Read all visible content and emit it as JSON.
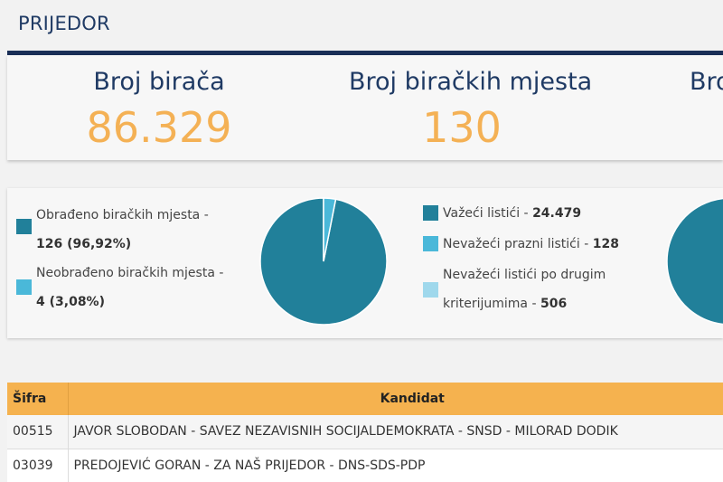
{
  "header": {
    "title": "PRIJEDOR"
  },
  "stats": [
    {
      "label": "Broj birača",
      "value": "86.329"
    },
    {
      "label": "Broj biračkih mjesta",
      "value": "130"
    },
    {
      "label": "Bro",
      "value": ""
    }
  ],
  "polling_chart": {
    "legend": [
      {
        "label": "Obrađeno biračkih mjesta -",
        "value": "126 (96,92%)",
        "color": "#21809a"
      },
      {
        "label": "Neobrađeno biračkih mjesta -",
        "value": "4 (3,08%)",
        "color": "#4ab8d9"
      }
    ],
    "slices": [
      {
        "share": 96.92,
        "color": "#21809a"
      },
      {
        "share": 3.08,
        "color": "#4ab8d9"
      }
    ]
  },
  "ballots_chart": {
    "legend": [
      {
        "label": "Važeći listići - ",
        "value": "24.479",
        "color": "#21809a"
      },
      {
        "label": "Nevažeći prazni listići - ",
        "value": "128",
        "color": "#4ab8d9"
      },
      {
        "label_line1": "Nevažeći listići po drugim",
        "label_line2": "kriterijumima - ",
        "value": "506",
        "color": "#9fd8ec"
      }
    ],
    "slices": [
      {
        "share": 97.48,
        "color": "#21809a"
      },
      {
        "share": 0.51,
        "color": "#4ab8d9"
      },
      {
        "share": 2.01,
        "color": "#9fd8ec"
      }
    ]
  },
  "table": {
    "headers": {
      "code": "Šifra",
      "candidate": "Kandidat"
    },
    "rows": [
      {
        "code": "00515",
        "candidate": "JAVOR SLOBODAN - SAVEZ NEZAVISNIH SOCIJALDEMOKRATA - SNSD - MILORAD DODIK"
      },
      {
        "code": "03039",
        "candidate": "PREDOJEVIĆ GORAN - ZA NAŠ PRIJEDOR - DNS-SDS-PDP"
      }
    ]
  }
}
